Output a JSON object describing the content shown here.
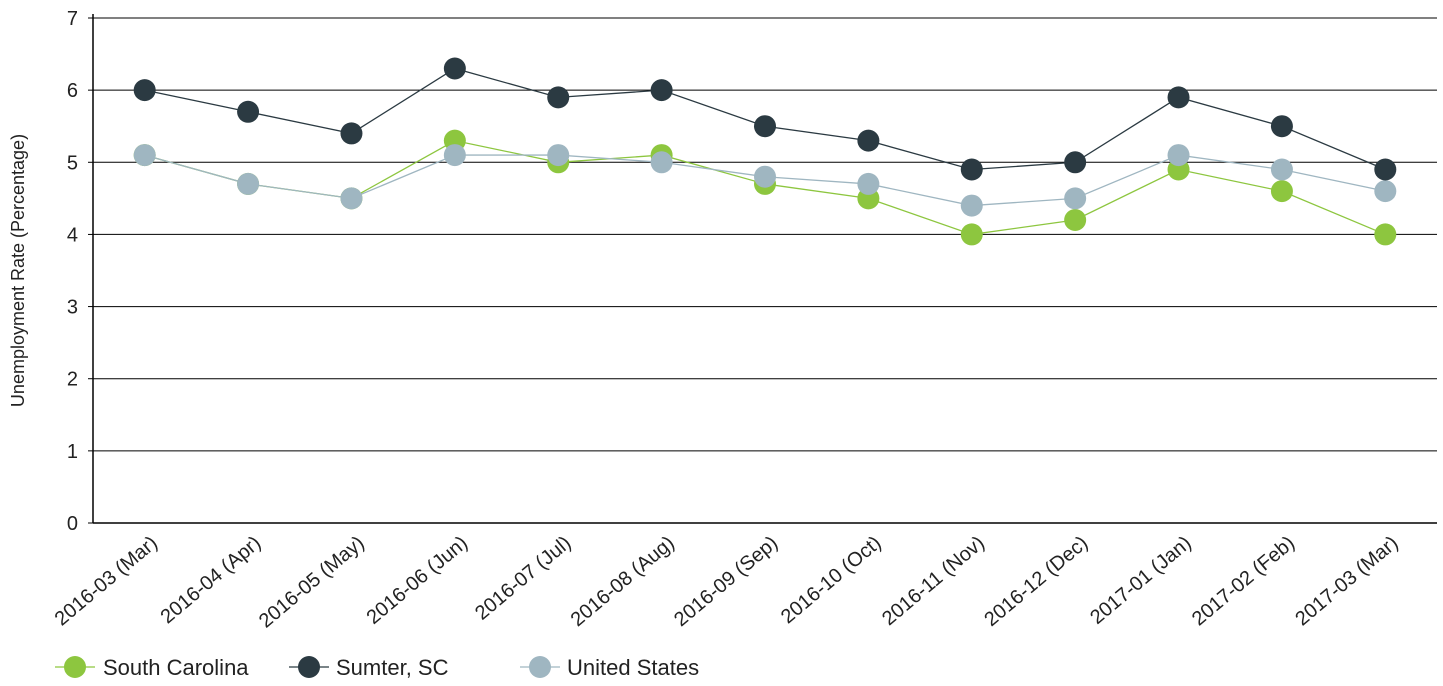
{
  "chart_data": {
    "type": "line",
    "title": "",
    "xlabel": "",
    "ylabel": "Unemployment Rate (Percentage)",
    "ylim": [
      0,
      7
    ],
    "yticks": [
      0,
      1,
      2,
      3,
      4,
      5,
      6,
      7
    ],
    "grid": true,
    "legend_position": "bottom-left",
    "categories": [
      "2016-03 (Mar)",
      "2016-04 (Apr)",
      "2016-05 (May)",
      "2016-06 (Jun)",
      "2016-07 (Jul)",
      "2016-08 (Aug)",
      "2016-09 (Sep)",
      "2016-10 (Oct)",
      "2016-11 (Nov)",
      "2016-12 (Dec)",
      "2017-01 (Jan)",
      "2017-02 (Feb)",
      "2017-03 (Mar)"
    ],
    "series": [
      {
        "name": "South Carolina",
        "color": "#8dc63f",
        "values": [
          5.1,
          4.7,
          4.5,
          5.3,
          5.0,
          5.1,
          4.7,
          4.5,
          4.0,
          4.2,
          4.9,
          4.6,
          4.0
        ]
      },
      {
        "name": "Sumter, SC",
        "color": "#2b3a42",
        "values": [
          6.0,
          5.7,
          5.4,
          6.3,
          5.9,
          6.0,
          5.5,
          5.3,
          4.9,
          5.0,
          5.9,
          5.5,
          4.9
        ]
      },
      {
        "name": "United States",
        "color": "#9fb6c1",
        "values": [
          5.1,
          4.7,
          4.5,
          5.1,
          5.1,
          5.0,
          4.8,
          4.7,
          4.4,
          4.5,
          5.1,
          4.9,
          4.6
        ]
      }
    ]
  }
}
